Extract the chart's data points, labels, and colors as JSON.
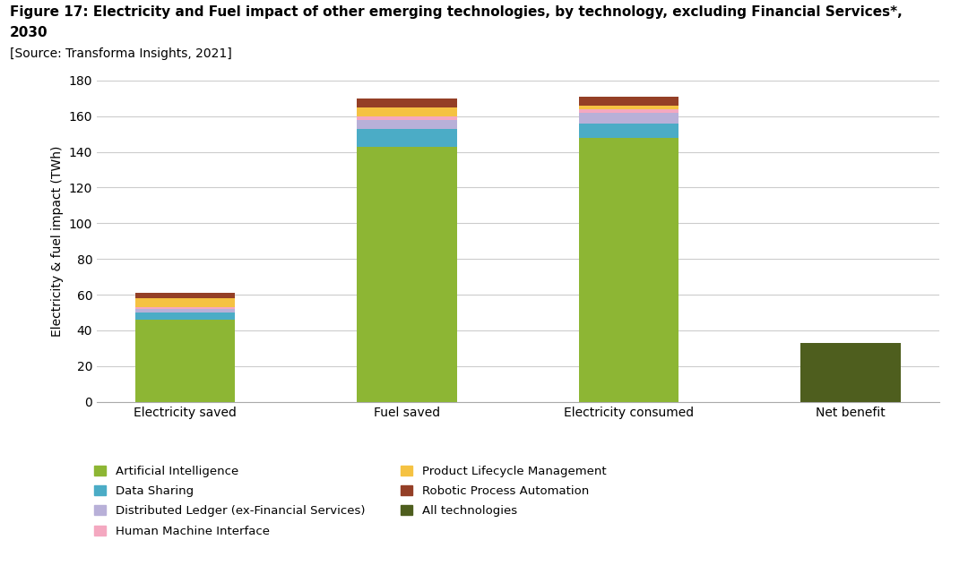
{
  "title_line1": "Figure 17: Electricity and Fuel impact of other emerging technologies, by technology, excluding Financial Services*,",
  "title_line2": "2030",
  "source": "[Source: Transforma Insights, 2021]",
  "categories": [
    "Electricity saved",
    "Fuel saved",
    "Electricity consumed",
    "Net benefit"
  ],
  "series": [
    {
      "label": "Artificial Intelligence",
      "color": "#8DB634",
      "values": [
        46,
        143,
        148,
        0
      ]
    },
    {
      "label": "Data Sharing",
      "color": "#4BACC6",
      "values": [
        4,
        10,
        8,
        0
      ]
    },
    {
      "label": "Distributed Ledger (ex-Financial Services)",
      "color": "#B8B0D8",
      "values": [
        2,
        5,
        6,
        0
      ]
    },
    {
      "label": "Human Machine Interface",
      "color": "#F4A8C0",
      "values": [
        1,
        2,
        2,
        0
      ]
    },
    {
      "label": "Product Lifecycle Management",
      "color": "#F5C242",
      "values": [
        5,
        5,
        2,
        0
      ]
    },
    {
      "label": "Robotic Process Automation",
      "color": "#943F26",
      "values": [
        3,
        5,
        5,
        0
      ]
    },
    {
      "label": "All technologies",
      "color": "#4E5E1E",
      "values": [
        0,
        0,
        0,
        33
      ]
    }
  ],
  "ylabel": "Electricity & fuel impact (TWh)",
  "ylim": [
    0,
    180
  ],
  "yticks": [
    0,
    20,
    40,
    60,
    80,
    100,
    120,
    140,
    160,
    180
  ],
  "background_color": "#ffffff",
  "grid_color": "#cccccc",
  "bar_width": 0.45,
  "title_fontsize": 11,
  "label_fontsize": 10,
  "legend_fontsize": 9.5
}
